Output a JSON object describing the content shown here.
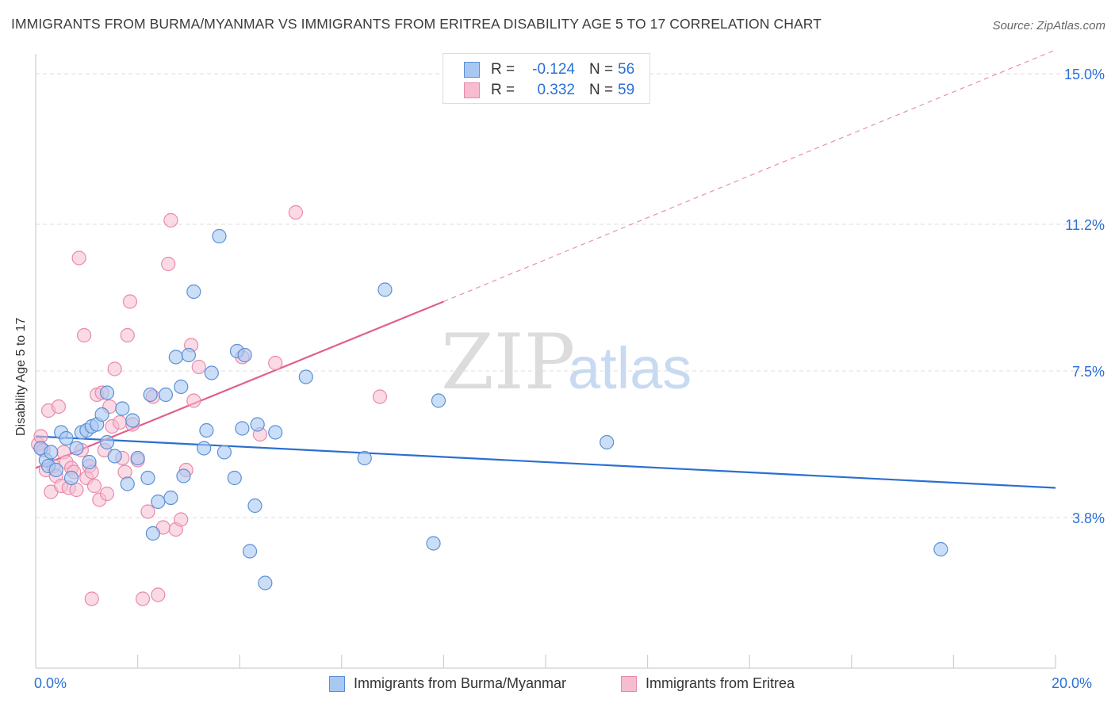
{
  "title": "IMMIGRANTS FROM BURMA/MYANMAR VS IMMIGRANTS FROM ERITREA DISABILITY AGE 5 TO 17 CORRELATION CHART",
  "source": "Source: ZipAtlas.com",
  "watermark": {
    "zip": "ZIP",
    "atlas": "atlas"
  },
  "legend": {
    "rows": [
      {
        "r_label": "R =",
        "r_value": "-0.124",
        "n_label": "N =",
        "n_value": "56"
      },
      {
        "r_label": "R =",
        "r_value": "0.332",
        "n_label": "N =",
        "n_value": "59"
      }
    ]
  },
  "colors": {
    "blue_fill": "#a8c8f2",
    "blue_stroke": "#5b8fd6",
    "blue_line": "#2b6fd0",
    "pink_fill": "#f6bccf",
    "pink_stroke": "#e98aa8",
    "pink_line": "#e0608a",
    "tick_text": "#2b6fd6",
    "grid": "#dedede"
  },
  "chart_data": {
    "type": "scatter",
    "title": "IMMIGRANTS FROM BURMA/MYANMAR VS IMMIGRANTS FROM ERITREA DISABILITY AGE 5 TO 17 CORRELATION CHART",
    "xlabel": "",
    "ylabel": "Disability Age 5 to 17",
    "xlim": [
      0,
      20
    ],
    "ylim": [
      0,
      15.5
    ],
    "x_tick_labels": [
      "0.0%",
      "20.0%"
    ],
    "y_ticks": [
      3.8,
      7.5,
      11.2,
      15.0
    ],
    "y_tick_labels": [
      "3.8%",
      "7.5%",
      "11.2%",
      "15.0%"
    ],
    "grid": true,
    "legend_position": "top-center",
    "series": [
      {
        "name": "Immigrants from Burma/Myanmar",
        "color": "#a8c8f2",
        "trend": {
          "x": [
            0,
            20
          ],
          "y": [
            5.85,
            4.55
          ]
        },
        "points": [
          [
            0.1,
            5.55
          ],
          [
            0.2,
            5.25
          ],
          [
            0.25,
            5.1
          ],
          [
            0.3,
            5.45
          ],
          [
            0.4,
            5.0
          ],
          [
            0.5,
            5.95
          ],
          [
            0.6,
            5.8
          ],
          [
            0.7,
            4.8
          ],
          [
            0.8,
            5.55
          ],
          [
            0.9,
            5.95
          ],
          [
            1.0,
            6.0
          ],
          [
            1.05,
            5.2
          ],
          [
            1.1,
            6.1
          ],
          [
            1.2,
            6.15
          ],
          [
            1.3,
            6.4
          ],
          [
            1.4,
            5.7
          ],
          [
            1.4,
            6.95
          ],
          [
            1.55,
            5.35
          ],
          [
            1.7,
            6.55
          ],
          [
            1.8,
            4.65
          ],
          [
            1.9,
            6.25
          ],
          [
            2.0,
            5.3
          ],
          [
            2.2,
            4.8
          ],
          [
            2.25,
            6.9
          ],
          [
            2.3,
            3.4
          ],
          [
            2.4,
            4.2
          ],
          [
            2.55,
            6.9
          ],
          [
            2.65,
            4.3
          ],
          [
            2.75,
            7.85
          ],
          [
            2.85,
            7.1
          ],
          [
            2.9,
            4.85
          ],
          [
            3.0,
            7.9
          ],
          [
            3.1,
            9.5
          ],
          [
            3.3,
            5.55
          ],
          [
            3.35,
            6.0
          ],
          [
            3.45,
            7.45
          ],
          [
            3.6,
            10.9
          ],
          [
            3.7,
            5.45
          ],
          [
            3.9,
            4.8
          ],
          [
            3.95,
            8.0
          ],
          [
            4.05,
            6.05
          ],
          [
            4.1,
            7.9
          ],
          [
            4.2,
            2.95
          ],
          [
            4.3,
            4.1
          ],
          [
            4.35,
            6.15
          ],
          [
            4.5,
            2.15
          ],
          [
            4.7,
            5.95
          ],
          [
            5.3,
            7.35
          ],
          [
            6.45,
            5.3
          ],
          [
            6.85,
            9.55
          ],
          [
            7.8,
            3.15
          ],
          [
            7.9,
            6.75
          ],
          [
            11.2,
            5.7
          ],
          [
            17.75,
            3.0
          ]
        ]
      },
      {
        "name": "Immigrants from Eritrea",
        "color": "#f6bccf",
        "trend": {
          "x": [
            0,
            8.0
          ],
          "y": [
            5.05,
            9.25
          ]
        },
        "trend_dashed": {
          "x": [
            8.0,
            20
          ],
          "y": [
            9.25,
            15.6
          ]
        },
        "points": [
          [
            0.05,
            5.65
          ],
          [
            0.1,
            5.85
          ],
          [
            0.15,
            5.5
          ],
          [
            0.2,
            5.0
          ],
          [
            0.25,
            6.5
          ],
          [
            0.3,
            4.45
          ],
          [
            0.35,
            5.1
          ],
          [
            0.4,
            4.85
          ],
          [
            0.45,
            6.6
          ],
          [
            0.5,
            4.6
          ],
          [
            0.55,
            5.45
          ],
          [
            0.6,
            5.2
          ],
          [
            0.65,
            4.55
          ],
          [
            0.7,
            5.05
          ],
          [
            0.75,
            4.95
          ],
          [
            0.8,
            4.5
          ],
          [
            0.85,
            10.35
          ],
          [
            0.9,
            5.5
          ],
          [
            0.95,
            8.4
          ],
          [
            1.0,
            4.8
          ],
          [
            1.05,
            5.1
          ],
          [
            1.1,
            4.95
          ],
          [
            1.15,
            4.6
          ],
          [
            1.2,
            6.9
          ],
          [
            1.25,
            4.25
          ],
          [
            1.3,
            6.95
          ],
          [
            1.35,
            5.5
          ],
          [
            1.4,
            4.4
          ],
          [
            1.45,
            6.6
          ],
          [
            1.5,
            6.1
          ],
          [
            1.55,
            7.55
          ],
          [
            1.65,
            6.2
          ],
          [
            1.7,
            5.3
          ],
          [
            1.75,
            4.95
          ],
          [
            1.8,
            8.4
          ],
          [
            1.85,
            9.25
          ],
          [
            1.9,
            6.15
          ],
          [
            2.0,
            5.25
          ],
          [
            2.1,
            1.75
          ],
          [
            2.2,
            3.95
          ],
          [
            2.3,
            6.85
          ],
          [
            2.4,
            1.85
          ],
          [
            2.5,
            3.55
          ],
          [
            2.6,
            10.2
          ],
          [
            2.65,
            11.3
          ],
          [
            2.75,
            3.5
          ],
          [
            2.85,
            3.75
          ],
          [
            2.95,
            5.0
          ],
          [
            3.05,
            8.15
          ],
          [
            3.1,
            6.75
          ],
          [
            3.2,
            7.6
          ],
          [
            4.05,
            7.85
          ],
          [
            4.4,
            5.9
          ],
          [
            4.7,
            7.7
          ],
          [
            5.1,
            11.5
          ],
          [
            6.75,
            6.85
          ],
          [
            1.1,
            1.75
          ]
        ]
      }
    ]
  },
  "bottom_legend": {
    "items": [
      {
        "label": "Immigrants from Burma/Myanmar"
      },
      {
        "label": "Immigrants from Eritrea"
      }
    ]
  }
}
